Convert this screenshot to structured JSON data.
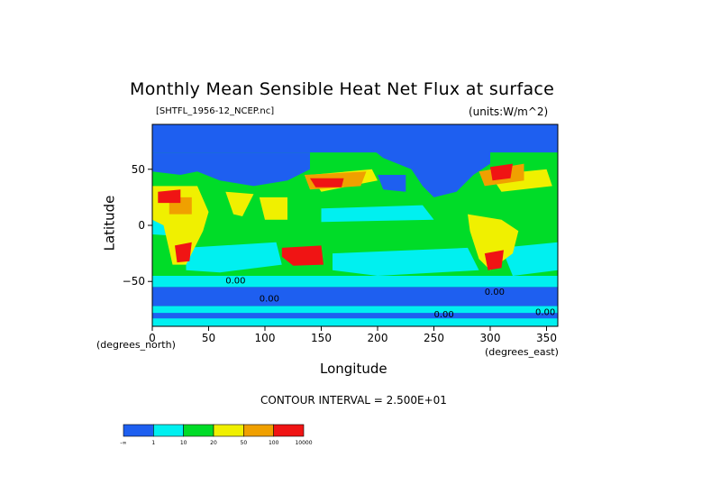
{
  "chart_data": {
    "type": "heatmap",
    "title": "Monthly Mean Sensible Heat Net Flux at surface",
    "dataset_label": "[SHTFL_1956-12_NCEP.nc]",
    "units_label": "(units:W/m^2)",
    "xlabel": "Longitude",
    "ylabel": "Latitude",
    "x_unit_label": "(degrees_east)",
    "y_unit_label": "(degrees_north)",
    "xlim": [
      0,
      360
    ],
    "ylim": [
      -90,
      90
    ],
    "x_ticks": [
      {
        "value": 0,
        "label": "0"
      },
      {
        "value": 50,
        "label": "50"
      },
      {
        "value": 100,
        "label": "100"
      },
      {
        "value": 150,
        "label": "150"
      },
      {
        "value": 200,
        "label": "200"
      },
      {
        "value": 250,
        "label": "250"
      },
      {
        "value": 300,
        "label": "300"
      },
      {
        "value": 350,
        "label": "350"
      }
    ],
    "y_ticks": [
      {
        "value": 50,
        "label": "50"
      },
      {
        "value": 0,
        "label": "0"
      },
      {
        "value": -50,
        "label": "−50"
      }
    ],
    "contour_interval_text": "CONTOUR INTERVAL = 2.500E+01",
    "contour_labels": [
      {
        "x": 65,
        "y": -52,
        "text": "0.00"
      },
      {
        "x": 95,
        "y": -68,
        "text": "0.00"
      },
      {
        "x": 295,
        "y": -62,
        "text": "0.00"
      },
      {
        "x": 250,
        "y": -82,
        "text": "0.00"
      },
      {
        "x": 340,
        "y": -80,
        "text": "0.00"
      }
    ],
    "colorbar": {
      "bins": [
        {
          "label": "-∞",
          "color": "#1e5ff0"
        },
        {
          "label": "1",
          "color": "#00f0f0"
        },
        {
          "label": "10",
          "color": "#00dc28"
        },
        {
          "label": "20",
          "color": "#f0f000"
        },
        {
          "label": "50",
          "color": "#f0a000"
        },
        {
          "label": "100",
          "color": "#f01414"
        },
        {
          "label": "10000",
          "color": ""
        }
      ]
    },
    "regions": [
      {
        "name": "background-ocean",
        "color": "#00dc28"
      },
      {
        "name": "arctic-ocean",
        "color": "#1e5ff0"
      },
      {
        "name": "southern-ocean",
        "color": "#1e5ff0"
      },
      {
        "name": "antarctica",
        "color": "#00f0f0"
      },
      {
        "name": "north-america",
        "color": "#1e5ff0"
      },
      {
        "name": "eurasia",
        "color": "#1e5ff0"
      },
      {
        "name": "kuroshio-high",
        "color": "#f01414"
      },
      {
        "name": "gulf-stream-high",
        "color": "#f01414"
      },
      {
        "name": "australia-high",
        "color": "#f01414"
      },
      {
        "name": "africa-high",
        "color": "#f01414"
      },
      {
        "name": "south-america-high",
        "color": "#f01414"
      },
      {
        "name": "north-pacific-blue",
        "color": "#1e5ff0"
      },
      {
        "name": "tropical-yellow",
        "color": "#f0f000"
      },
      {
        "name": "cyan-bands",
        "color": "#00f0f0"
      }
    ]
  }
}
